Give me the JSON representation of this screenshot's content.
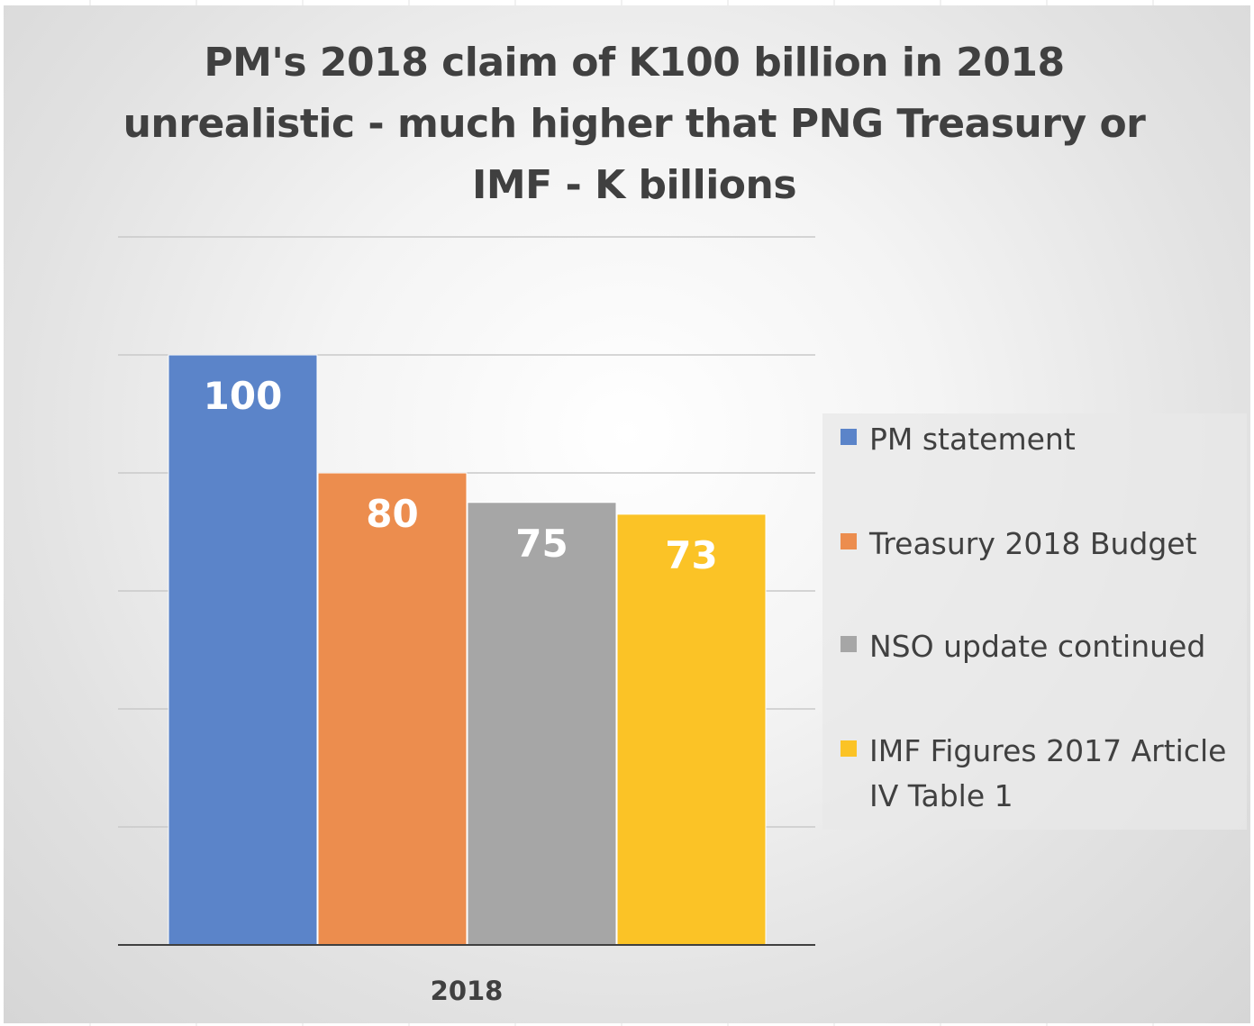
{
  "chart_data": {
    "type": "bar",
    "title": "PM's 2018 claim of K100 billion in 2018 unrealistic - much higher that PNG Treasury or IMF - K billions",
    "categories": [
      "2018"
    ],
    "series": [
      {
        "name": "PM statement",
        "values": [
          100
        ],
        "color": "#5b84c9"
      },
      {
        "name": "Treasury 2018 Budget",
        "values": [
          80
        ],
        "color": "#ec8d4e"
      },
      {
        "name": "NSO update continued",
        "values": [
          75
        ],
        "color": "#a6a6a6"
      },
      {
        "name": "IMF Figures 2017 Article IV Table 1",
        "values": [
          73
        ],
        "color": "#fbc326"
      }
    ],
    "ylim": [
      0,
      120
    ],
    "y_gridlines": true,
    "y_axis_labels_shown": false,
    "data_labels": true,
    "legend_position": "right"
  }
}
